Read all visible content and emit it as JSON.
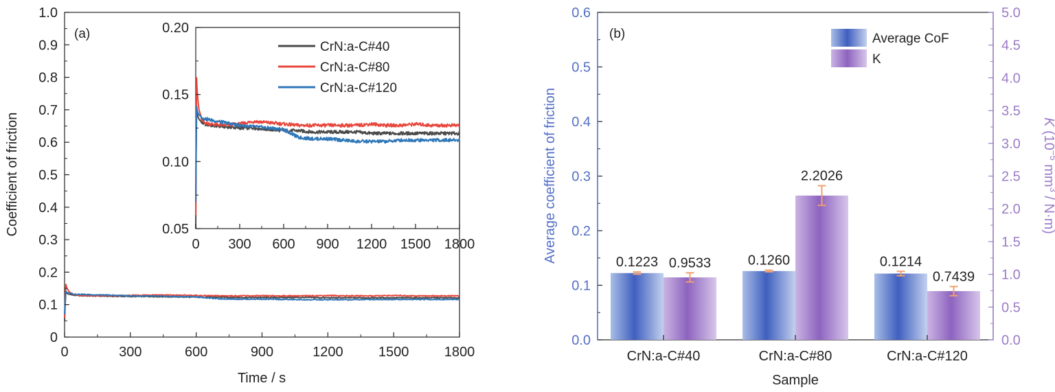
{
  "chart_data": [
    {
      "id": "a",
      "type": "line",
      "panel_label": "(a)",
      "xlabel": "Time / s",
      "ylabel": "Coefficient of friction",
      "xlim": [
        0,
        1800
      ],
      "ylim": [
        0,
        1.0
      ],
      "xticks": [
        "0",
        "300",
        "600",
        "900",
        "1200",
        "1500",
        "1800"
      ],
      "yticks": [
        "0",
        "0.1",
        "0.2",
        "0.3",
        "0.4",
        "0.5",
        "0.6",
        "0.7",
        "0.8",
        "0.9",
        "1.0"
      ],
      "grid": false,
      "series": [
        {
          "name": "CrN:a-C#40",
          "color": "#4a4a4a",
          "x": [
            0,
            5,
            10,
            20,
            40,
            60,
            100,
            200,
            300,
            400,
            500,
            600,
            700,
            800,
            900,
            1000,
            1100,
            1200,
            1300,
            1400,
            1500,
            1600,
            1700,
            1800
          ],
          "y": [
            0.05,
            0.14,
            0.135,
            0.132,
            0.129,
            0.128,
            0.127,
            0.126,
            0.125,
            0.125,
            0.124,
            0.123,
            0.123,
            0.122,
            0.122,
            0.122,
            0.122,
            0.121,
            0.121,
            0.121,
            0.121,
            0.121,
            0.121,
            0.121
          ]
        },
        {
          "name": "CrN:a-C#80",
          "color": "#e8463c",
          "x": [
            0,
            5,
            10,
            20,
            40,
            60,
            100,
            200,
            300,
            400,
            500,
            600,
            700,
            800,
            900,
            1000,
            1100,
            1200,
            1300,
            1400,
            1500,
            1600,
            1700,
            1800
          ],
          "y": [
            0.06,
            0.165,
            0.152,
            0.14,
            0.131,
            0.129,
            0.128,
            0.127,
            0.128,
            0.13,
            0.129,
            0.128,
            0.127,
            0.127,
            0.127,
            0.127,
            0.127,
            0.128,
            0.127,
            0.127,
            0.128,
            0.127,
            0.127,
            0.127
          ]
        },
        {
          "name": "CrN:a-C#120",
          "color": "#2f77b8",
          "x": [
            0,
            5,
            10,
            20,
            40,
            60,
            100,
            200,
            300,
            400,
            500,
            600,
            700,
            800,
            900,
            1000,
            1100,
            1200,
            1300,
            1400,
            1500,
            1600,
            1700,
            1800
          ],
          "y": [
            0.07,
            0.142,
            0.138,
            0.135,
            0.133,
            0.132,
            0.131,
            0.129,
            0.127,
            0.126,
            0.125,
            0.124,
            0.118,
            0.117,
            0.117,
            0.116,
            0.115,
            0.115,
            0.115,
            0.116,
            0.116,
            0.116,
            0.116,
            0.116
          ]
        }
      ],
      "inset": {
        "xlim": [
          0,
          1800
        ],
        "ylim": [
          0.05,
          0.2
        ],
        "xticks": [
          "0",
          "300",
          "600",
          "900",
          "1200",
          "1500",
          "1800"
        ],
        "yticks": [
          "0.05",
          "0.10",
          "0.15",
          "0.20"
        ],
        "legend_position": "top-right"
      }
    },
    {
      "id": "b",
      "type": "bar",
      "panel_label": "(b)",
      "xlabel": "Sample",
      "ylabel": "Average coefficient of friction",
      "y2label_italic": "K",
      "y2label_open": " (10",
      "y2label_exp1": "−5",
      "y2label_mid": " mm",
      "y2label_exp2": "3",
      "y2label_close": " / N·m)",
      "ylim": [
        0,
        0.6
      ],
      "y2lim": [
        0,
        5.0
      ],
      "yticks": [
        "0.0",
        "0.1",
        "0.2",
        "0.3",
        "0.4",
        "0.5",
        "0.6"
      ],
      "y2ticks": [
        "0.0",
        "0.5",
        "1.0",
        "1.5",
        "2.0",
        "2.5",
        "3.0",
        "3.5",
        "4.0",
        "4.5",
        "5.0"
      ],
      "categories": [
        "CrN:a-C#40",
        "CrN:a-C#80",
        "CrN:a-C#120"
      ],
      "legend_position": "top-right",
      "series": [
        {
          "name": "Average CoF",
          "axis": "left",
          "color": "#4a6bc4",
          "values": [
            0.1223,
            0.126,
            0.1214
          ],
          "errors": [
            0.002,
            0.0015,
            0.004
          ],
          "labels": [
            "0.1223",
            "0.1260",
            "0.1214"
          ]
        },
        {
          "name": "K",
          "axis": "right",
          "color": "#9a6fc4",
          "values": [
            0.9533,
            2.2026,
            0.7439
          ],
          "errors": [
            0.07,
            0.15,
            0.07
          ],
          "labels": [
            "0.9533",
            "2.2026",
            "0.7439"
          ]
        }
      ],
      "left_axis_color": "#5470c6",
      "right_axis_color": "#9c7cc7",
      "error_bar_color": "#f0a070"
    }
  ]
}
